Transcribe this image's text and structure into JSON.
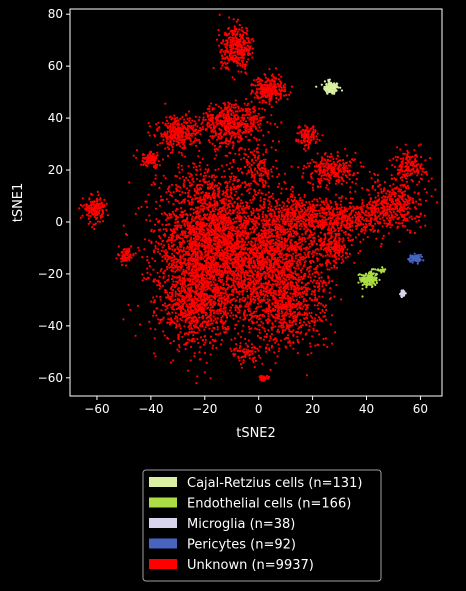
{
  "chart_data": {
    "type": "scatter",
    "xlabel": "tSNE2",
    "ylabel": "tSNE1",
    "xlim": [
      -70,
      68
    ],
    "ylim": [
      -67,
      82
    ],
    "xticks": [
      -60,
      -40,
      -20,
      0,
      20,
      40,
      60
    ],
    "yticks": [
      -60,
      -40,
      -20,
      0,
      20,
      40,
      60,
      80
    ],
    "grid": false,
    "legend_position": "below",
    "series": [
      {
        "name": "Cajal-Retzius cells (n=131)",
        "color": "#d9f0a3",
        "n": 131,
        "clusters": [
          {
            "cx": 27,
            "cy": 51.5,
            "sx": 1.4,
            "sy": 1.2,
            "n": 125
          },
          {
            "cx": 25.5,
            "cy": 54,
            "sx": 0.6,
            "sy": 0.6,
            "n": 6
          }
        ]
      },
      {
        "name": "Endothelial cells (n=166)",
        "color": "#addd44",
        "n": 166,
        "clusters": [
          {
            "cx": 41,
            "cy": -22,
            "sx": 1.6,
            "sy": 1.6,
            "n": 150
          },
          {
            "cx": 46,
            "cy": -18.5,
            "sx": 0.8,
            "sy": 0.6,
            "n": 16
          }
        ]
      },
      {
        "name": "Microglia (n=38)",
        "color": "#d8d4f0",
        "n": 38,
        "clusters": [
          {
            "cx": 53.5,
            "cy": -27.5,
            "sx": 0.5,
            "sy": 0.6,
            "n": 38
          }
        ]
      },
      {
        "name": "Pericytes (n=92)",
        "color": "#4664c0",
        "n": 92,
        "clusters": [
          {
            "cx": 58,
            "cy": -14,
            "sx": 1.1,
            "sy": 0.7,
            "n": 92
          }
        ]
      },
      {
        "name": "Unknown (n=9937)",
        "color": "#ff0000",
        "n": 9937,
        "clusters": [
          {
            "cx": -18,
            "cy": -8,
            "sx": 10,
            "sy": 14,
            "n": 2600
          },
          {
            "cx": -24,
            "cy": -32,
            "sx": 6,
            "sy": 8,
            "n": 700
          },
          {
            "cx": 5,
            "cy": -15,
            "sx": 10,
            "sy": 11,
            "n": 1700
          },
          {
            "cx": 10,
            "cy": -35,
            "sx": 8,
            "sy": 7,
            "n": 500
          },
          {
            "cx": 20,
            "cy": 2,
            "sx": 9,
            "sy": 4,
            "n": 500
          },
          {
            "cx": 36,
            "cy": 1,
            "sx": 6,
            "sy": 3,
            "n": 250
          },
          {
            "cx": 50,
            "cy": 7,
            "sx": 5,
            "sy": 5,
            "n": 400
          },
          {
            "cx": 56,
            "cy": 22,
            "sx": 3,
            "sy": 3,
            "n": 150
          },
          {
            "cx": 28,
            "cy": 20,
            "sx": 5,
            "sy": 3,
            "n": 250
          },
          {
            "cx": -10,
            "cy": 38,
            "sx": 6,
            "sy": 4,
            "n": 500
          },
          {
            "cx": -30,
            "cy": 34,
            "sx": 4,
            "sy": 3,
            "n": 300
          },
          {
            "cx": -40,
            "cy": 24,
            "sx": 2,
            "sy": 1.5,
            "n": 100
          },
          {
            "cx": -8,
            "cy": 67,
            "sx": 3,
            "sy": 4,
            "n": 350
          },
          {
            "cx": 4,
            "cy": 51,
            "sx": 3,
            "sy": 2.5,
            "n": 250
          },
          {
            "cx": 18,
            "cy": 33,
            "sx": 2,
            "sy": 2,
            "n": 120
          },
          {
            "cx": -61,
            "cy": 5,
            "sx": 2,
            "sy": 2.5,
            "n": 150
          },
          {
            "cx": -49,
            "cy": -13,
            "sx": 1.2,
            "sy": 1.5,
            "n": 80
          },
          {
            "cx": 0,
            "cy": 20,
            "sx": 4,
            "sy": 5,
            "n": 150
          },
          {
            "cx": -5,
            "cy": -50,
            "sx": 3,
            "sy": 2,
            "n": 70
          },
          {
            "cx": 2,
            "cy": -60,
            "sx": 1,
            "sy": 0.6,
            "n": 30
          },
          {
            "cx": 28,
            "cy": -10,
            "sx": 3,
            "sy": 3,
            "n": 187
          }
        ]
      }
    ]
  }
}
